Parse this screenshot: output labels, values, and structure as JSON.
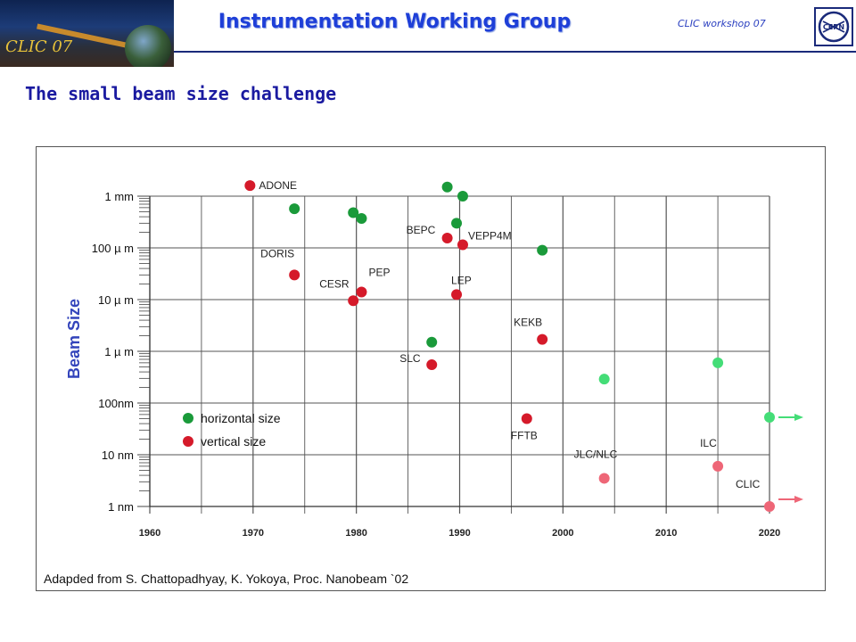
{
  "header": {
    "logo_text": "CLIC 07",
    "title": "Instrumentation Working Group",
    "event": "CLIC workshop 07",
    "cern_logo_text": "CERN"
  },
  "slide": {
    "title": "The small beam size challenge",
    "footnote": "Adapded from S. Chattopadhyay, K. Yokoya, Proc. Nanobeam `02"
  },
  "colors": {
    "horizontal": "#1a9a3a",
    "vertical": "#d51a2a",
    "future_horizontal": "#44dd77",
    "future_vertical": "#ee6677",
    "grid": "#555555",
    "ylabel": "#3344bb"
  },
  "chart_data": {
    "type": "scatter",
    "title": "",
    "xlabel": "",
    "ylabel": "Beam Size",
    "xlim": [
      1960,
      2020
    ],
    "x_ticks": [
      "1960",
      "1970",
      "1980",
      "1990",
      "2000",
      "2010",
      "2020"
    ],
    "y_scale": "log",
    "ylim_m": [
      1e-09,
      0.001
    ],
    "y_ticks": [
      "1 nm",
      "10 nm",
      "100nm",
      "1 µ m",
      "10 µ m",
      "100 µ m",
      "1 mm"
    ],
    "grid": true,
    "legend": [
      {
        "label": "horizontal size",
        "color": "#1a9a3a"
      },
      {
        "label": "vertical size",
        "color": "#d51a2a"
      }
    ],
    "series": [
      {
        "name": "horizontal size",
        "points": [
          {
            "x": 1974,
            "y": 0.00057
          },
          {
            "x": 1979.7,
            "y": 0.00048
          },
          {
            "x": 1980.5,
            "y": 0.00037
          },
          {
            "x": 1988.8,
            "y": 0.0015
          },
          {
            "x": 1990.3,
            "y": 0.001
          },
          {
            "x": 1989.7,
            "y": 0.0003
          },
          {
            "x": 1998,
            "y": 9e-05
          },
          {
            "x": 1987.3,
            "y": 1.5e-06
          },
          {
            "x": 2004,
            "y": 2.9e-07,
            "future": true
          },
          {
            "x": 2015,
            "y": 6e-07,
            "future": true
          },
          {
            "x": 2020,
            "y": 5.3e-08,
            "future": true
          }
        ]
      },
      {
        "name": "vertical size",
        "points": [
          {
            "x": 1969.7,
            "y": 0.0016,
            "label": "ADONE"
          },
          {
            "x": 1974,
            "y": 3e-05,
            "label": "DORIS"
          },
          {
            "x": 1979.7,
            "y": 9.5e-06,
            "label": "CESR"
          },
          {
            "x": 1980.5,
            "y": 1.4e-05,
            "label": "PEP"
          },
          {
            "x": 1988.8,
            "y": 0.000155,
            "label": "BEPC"
          },
          {
            "x": 1990.3,
            "y": 0.000115,
            "label": "VEPP4M"
          },
          {
            "x": 1989.7,
            "y": 1.25e-05,
            "label": "LEP"
          },
          {
            "x": 1998,
            "y": 1.7e-06,
            "label": "KEKB"
          },
          {
            "x": 1987.3,
            "y": 5.5e-07,
            "label": "SLC"
          },
          {
            "x": 1996.5,
            "y": 5e-08,
            "label": "FFTB"
          },
          {
            "x": 2004,
            "y": 3.5e-09,
            "label": "JLC/NLC",
            "future": true
          },
          {
            "x": 2015,
            "y": 6e-09,
            "label": "ILC",
            "future": true
          },
          {
            "x": 2020,
            "y": 1e-09,
            "label": "CLIC",
            "future": true
          }
        ]
      }
    ],
    "arrows": [
      "horizontal size",
      "vertical size"
    ]
  }
}
